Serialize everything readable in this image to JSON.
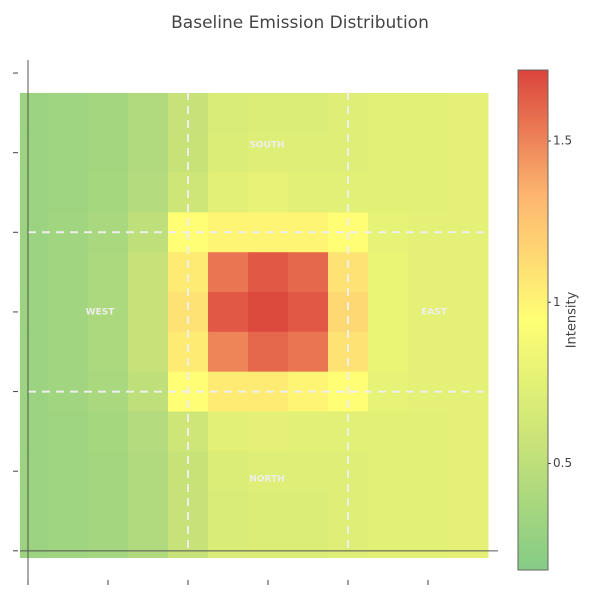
{
  "chart_data": {
    "type": "heatmap",
    "title": "Baseline Emission Distribution",
    "x": [
      0,
      0.5,
      1,
      1.5,
      2,
      2.5,
      3,
      3.5,
      4,
      4.5,
      5,
      5.5
    ],
    "y": [
      5.5,
      5,
      4.5,
      4,
      3.5,
      3,
      2.5,
      2,
      1.5,
      1,
      0.5,
      0
    ],
    "z": [
      [
        0.3,
        0.32,
        0.35,
        0.42,
        0.55,
        0.68,
        0.7,
        0.7,
        0.72,
        0.75,
        0.75,
        0.76
      ],
      [
        0.3,
        0.32,
        0.35,
        0.42,
        0.56,
        0.7,
        0.72,
        0.72,
        0.72,
        0.75,
        0.75,
        0.76
      ],
      [
        0.3,
        0.32,
        0.36,
        0.44,
        0.6,
        0.75,
        0.78,
        0.75,
        0.74,
        0.75,
        0.75,
        0.76
      ],
      [
        0.3,
        0.33,
        0.38,
        0.5,
        0.95,
        1.0,
        1.0,
        1.0,
        0.95,
        0.78,
        0.76,
        0.76
      ],
      [
        0.3,
        0.33,
        0.4,
        0.55,
        1.05,
        1.55,
        1.65,
        1.6,
        1.1,
        0.8,
        0.76,
        0.76
      ],
      [
        0.3,
        0.33,
        0.4,
        0.55,
        1.1,
        1.65,
        1.7,
        1.65,
        1.15,
        0.8,
        0.76,
        0.76
      ],
      [
        0.3,
        0.33,
        0.4,
        0.55,
        1.05,
        1.5,
        1.6,
        1.55,
        1.1,
        0.8,
        0.76,
        0.76
      ],
      [
        0.3,
        0.33,
        0.38,
        0.5,
        0.95,
        1.05,
        1.05,
        1.0,
        0.95,
        0.78,
        0.76,
        0.76
      ],
      [
        0.3,
        0.32,
        0.36,
        0.44,
        0.6,
        0.74,
        0.76,
        0.74,
        0.74,
        0.75,
        0.75,
        0.76
      ],
      [
        0.3,
        0.32,
        0.35,
        0.42,
        0.56,
        0.7,
        0.72,
        0.72,
        0.72,
        0.75,
        0.75,
        0.76
      ],
      [
        0.3,
        0.32,
        0.35,
        0.42,
        0.55,
        0.68,
        0.7,
        0.7,
        0.72,
        0.75,
        0.75,
        0.76
      ],
      [
        0.3,
        0.32,
        0.35,
        0.42,
        0.55,
        0.68,
        0.7,
        0.7,
        0.72,
        0.75,
        0.75,
        0.76
      ]
    ],
    "xlim": [
      -0.1,
      5.875
    ],
    "ylim": [
      -0.09,
      5.9
    ],
    "xticks": [
      0,
      1,
      2,
      3,
      4,
      5
    ],
    "yticks": [
      0,
      1,
      2,
      3,
      4,
      5,
      6
    ],
    "zlim": [
      0.17,
      1.72
    ],
    "zticks": [
      0.5,
      1,
      1.5
    ],
    "colorscale": [
      "#78c679",
      "#c2e06a",
      "#ffff66",
      "#fdae61",
      "#d73027"
    ],
    "colorbar_title": "Intensity",
    "vlines": [
      2,
      4
    ],
    "hlines": [
      2,
      4
    ],
    "annotations": [
      "SOUTH",
      "WEST",
      "EAST",
      "NORTH"
    ]
  }
}
